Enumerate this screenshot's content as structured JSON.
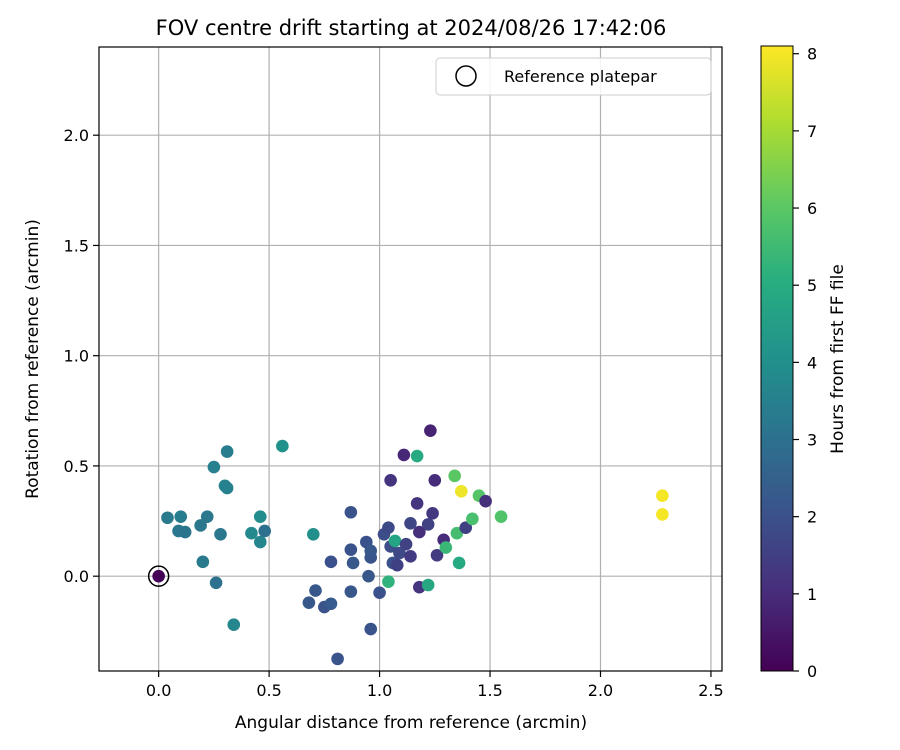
{
  "chart_data": {
    "type": "scatter",
    "title": "FOV centre drift starting at 2024/08/26 17:42:06",
    "xlabel": "Angular distance from reference (arcmin)",
    "ylabel": "Rotation from reference (arcmin)",
    "xlim": [
      -0.27,
      2.55
    ],
    "ylim": [
      -0.43,
      2.4
    ],
    "xticks": [
      "0.0",
      "0.5",
      "1.0",
      "1.5",
      "2.0",
      "2.5"
    ],
    "yticks": [
      "0.0",
      "0.5",
      "1.0",
      "1.5",
      "2.0"
    ],
    "grid": true,
    "legend": {
      "position": "top-right",
      "entries": [
        "Reference platepar"
      ]
    },
    "reference_point": {
      "x": 0.0,
      "y": 0.0
    },
    "colorbar": {
      "label": "Hours from first FF file",
      "colormap": "viridis",
      "range": [
        0,
        8.1
      ],
      "ticks": [
        "0",
        "1",
        "2",
        "3",
        "4",
        "5",
        "6",
        "7",
        "8"
      ]
    },
    "points": [
      {
        "x": 0.0,
        "y": 0.0,
        "c": 0.05
      },
      {
        "x": 0.04,
        "y": 0.265,
        "c": 3.3
      },
      {
        "x": 0.09,
        "y": 0.205,
        "c": 3.2
      },
      {
        "x": 0.1,
        "y": 0.27,
        "c": 3.4
      },
      {
        "x": 0.12,
        "y": 0.2,
        "c": 3.1
      },
      {
        "x": 0.19,
        "y": 0.23,
        "c": 3.2
      },
      {
        "x": 0.2,
        "y": 0.065,
        "c": 3.3
      },
      {
        "x": 0.22,
        "y": 0.27,
        "c": 3.2
      },
      {
        "x": 0.25,
        "y": 0.495,
        "c": 3.5
      },
      {
        "x": 0.26,
        "y": -0.03,
        "c": 3.0
      },
      {
        "x": 0.28,
        "y": 0.19,
        "c": 3.2
      },
      {
        "x": 0.3,
        "y": 0.41,
        "c": 3.6
      },
      {
        "x": 0.31,
        "y": 0.565,
        "c": 3.4
      },
      {
        "x": 0.31,
        "y": 0.4,
        "c": 3.5
      },
      {
        "x": 0.34,
        "y": -0.22,
        "c": 3.7
      },
      {
        "x": 0.42,
        "y": 0.195,
        "c": 3.8
      },
      {
        "x": 0.46,
        "y": 0.155,
        "c": 3.7
      },
      {
        "x": 0.46,
        "y": 0.27,
        "c": 3.9
      },
      {
        "x": 0.48,
        "y": 0.205,
        "c": 3.0
      },
      {
        "x": 0.56,
        "y": 0.59,
        "c": 4.1
      },
      {
        "x": 0.68,
        "y": -0.12,
        "c": 2.2
      },
      {
        "x": 0.7,
        "y": 0.19,
        "c": 4.0
      },
      {
        "x": 0.71,
        "y": -0.065,
        "c": 2.2
      },
      {
        "x": 0.75,
        "y": -0.14,
        "c": 2.1
      },
      {
        "x": 0.78,
        "y": 0.065,
        "c": 2.0
      },
      {
        "x": 0.78,
        "y": -0.125,
        "c": 2.3
      },
      {
        "x": 0.81,
        "y": -0.375,
        "c": 2.1
      },
      {
        "x": 0.87,
        "y": 0.29,
        "c": 2.1
      },
      {
        "x": 0.87,
        "y": 0.12,
        "c": 2.1
      },
      {
        "x": 0.87,
        "y": -0.07,
        "c": 2.2
      },
      {
        "x": 0.88,
        "y": 0.06,
        "c": 2.2
      },
      {
        "x": 0.94,
        "y": 0.155,
        "c": 2.0
      },
      {
        "x": 0.95,
        "y": 0.0,
        "c": 2.2
      },
      {
        "x": 0.96,
        "y": -0.24,
        "c": 2.1
      },
      {
        "x": 0.96,
        "y": 0.085,
        "c": 2.1
      },
      {
        "x": 0.96,
        "y": 0.115,
        "c": 2.2
      },
      {
        "x": 1.0,
        "y": -0.075,
        "c": 2.0
      },
      {
        "x": 1.02,
        "y": 0.19,
        "c": 1.9
      },
      {
        "x": 1.04,
        "y": 0.22,
        "c": 1.8
      },
      {
        "x": 1.04,
        "y": -0.025,
        "c": 5.2
      },
      {
        "x": 1.05,
        "y": 0.435,
        "c": 1.2
      },
      {
        "x": 1.05,
        "y": 0.135,
        "c": 1.9
      },
      {
        "x": 1.06,
        "y": 0.06,
        "c": 2.0
      },
      {
        "x": 1.07,
        "y": 0.16,
        "c": 4.7
      },
      {
        "x": 1.08,
        "y": 0.05,
        "c": 1.5
      },
      {
        "x": 1.09,
        "y": 0.105,
        "c": 1.8
      },
      {
        "x": 1.11,
        "y": 0.55,
        "c": 0.9
      },
      {
        "x": 1.12,
        "y": 0.145,
        "c": 1.6
      },
      {
        "x": 1.14,
        "y": 0.24,
        "c": 1.7
      },
      {
        "x": 1.14,
        "y": 0.09,
        "c": 1.4
      },
      {
        "x": 1.17,
        "y": 0.545,
        "c": 4.9
      },
      {
        "x": 1.17,
        "y": 0.33,
        "c": 1.2
      },
      {
        "x": 1.18,
        "y": 0.2,
        "c": 1.1
      },
      {
        "x": 1.18,
        "y": -0.05,
        "c": 1.2
      },
      {
        "x": 1.22,
        "y": 0.235,
        "c": 1.6
      },
      {
        "x": 1.22,
        "y": -0.04,
        "c": 4.8
      },
      {
        "x": 1.23,
        "y": 0.66,
        "c": 0.8
      },
      {
        "x": 1.24,
        "y": 0.285,
        "c": 1.3
      },
      {
        "x": 1.25,
        "y": 0.435,
        "c": 1.0
      },
      {
        "x": 1.26,
        "y": 0.095,
        "c": 1.4
      },
      {
        "x": 1.29,
        "y": 0.165,
        "c": 1.0
      },
      {
        "x": 1.3,
        "y": 0.13,
        "c": 5.4
      },
      {
        "x": 1.34,
        "y": 0.455,
        "c": 6.0
      },
      {
        "x": 1.35,
        "y": 0.195,
        "c": 5.6
      },
      {
        "x": 1.36,
        "y": 0.06,
        "c": 4.9
      },
      {
        "x": 1.37,
        "y": 0.385,
        "c": 7.9
      },
      {
        "x": 1.39,
        "y": 0.22,
        "c": 1.5
      },
      {
        "x": 1.42,
        "y": 0.26,
        "c": 5.7
      },
      {
        "x": 1.45,
        "y": 0.365,
        "c": 5.9
      },
      {
        "x": 1.48,
        "y": 0.34,
        "c": 1.1
      },
      {
        "x": 1.55,
        "y": 0.27,
        "c": 5.8
      },
      {
        "x": 2.28,
        "y": 0.365,
        "c": 8.0
      },
      {
        "x": 2.28,
        "y": 0.28,
        "c": 8.0
      }
    ]
  }
}
